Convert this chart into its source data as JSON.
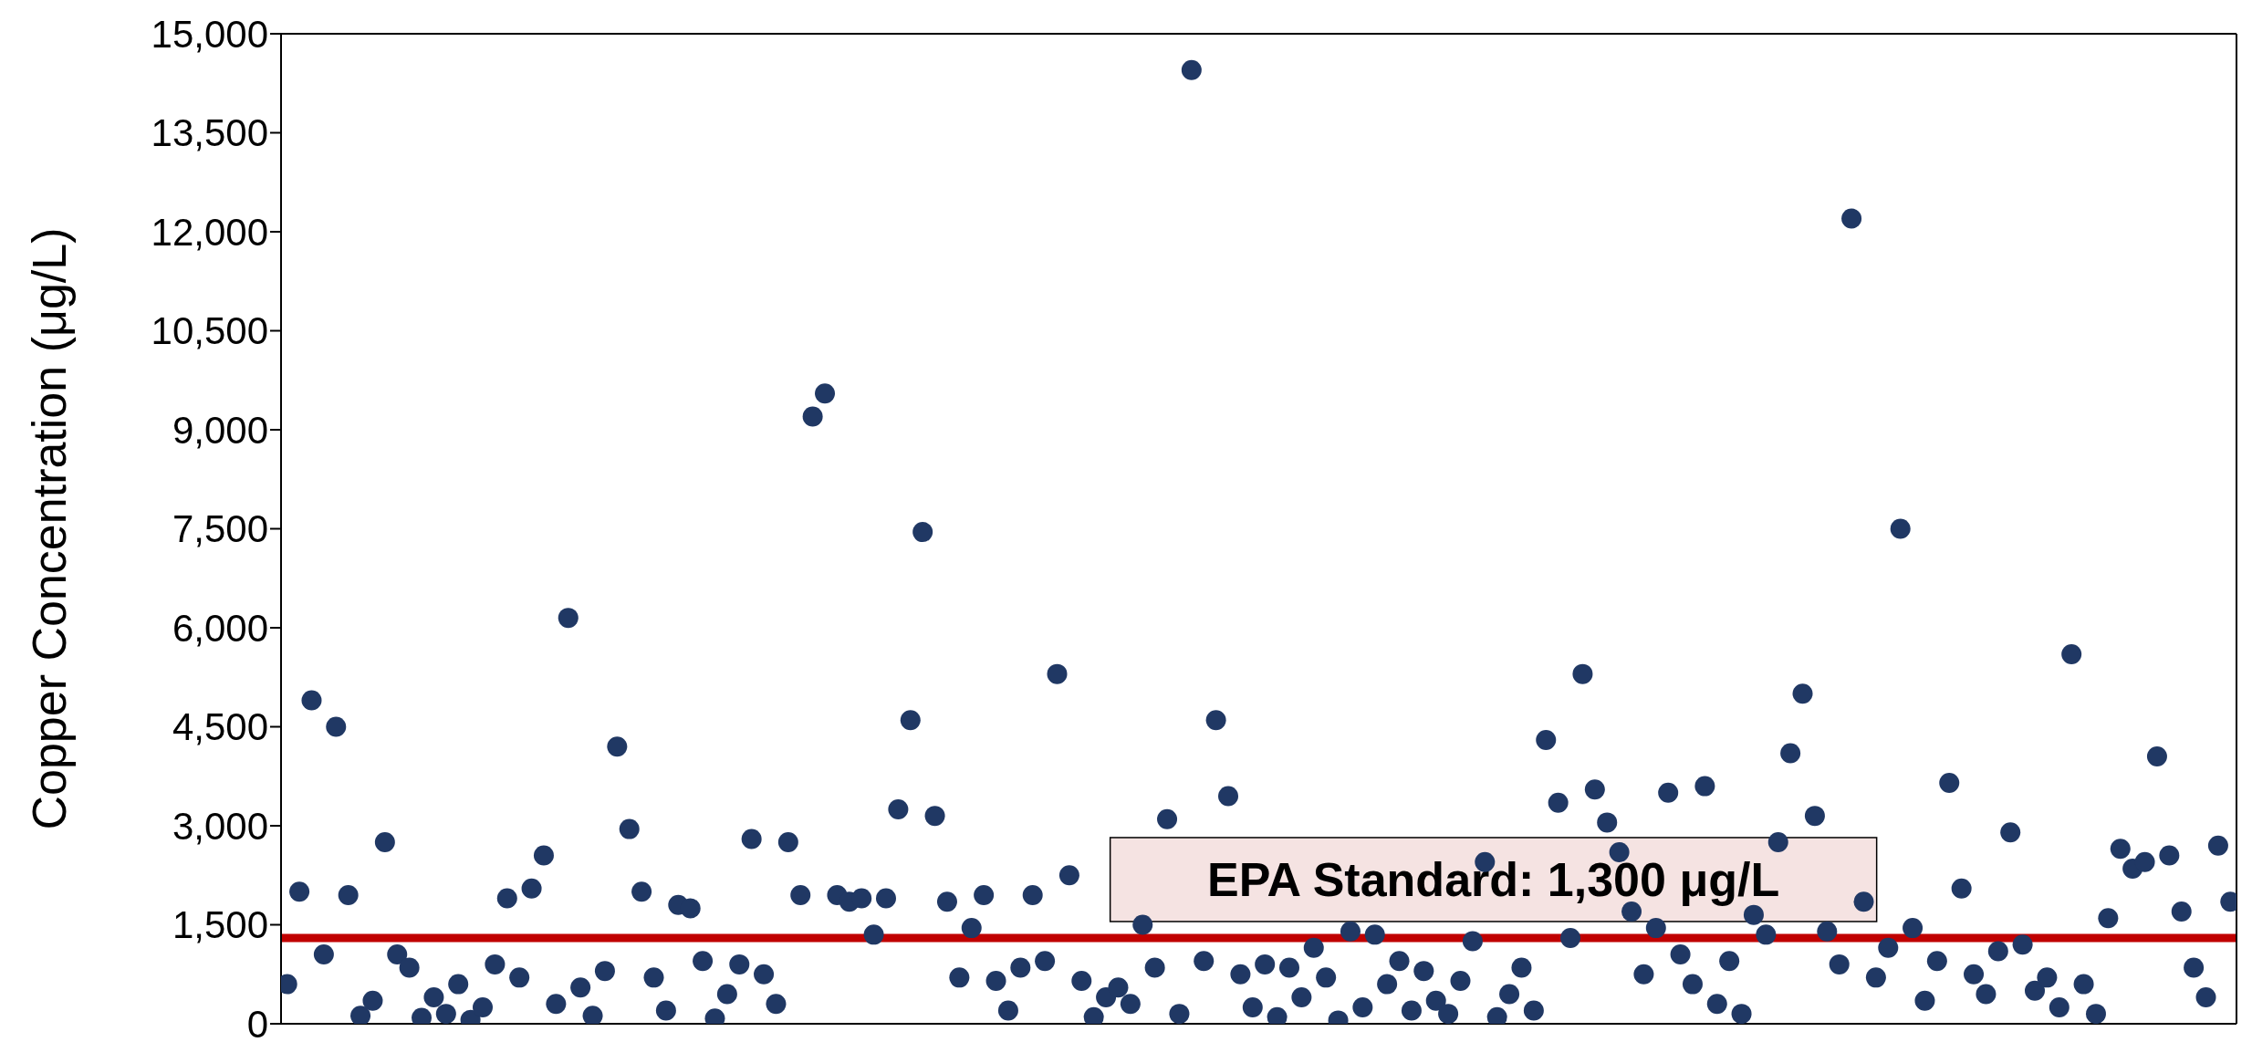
{
  "chart_data": {
    "type": "scatter",
    "ylabel": "Copper Concentration (μg/L)",
    "categories": [
      null,
      null,
      null,
      null,
      null,
      null,
      null,
      null,
      null,
      null,
      null,
      null,
      null,
      null,
      null,
      null,
      null,
      null,
      null,
      null,
      null,
      null,
      null,
      null,
      null,
      null,
      null,
      null,
      null,
      null,
      null,
      null,
      null,
      null,
      null,
      null,
      null,
      null,
      null,
      null,
      null,
      null,
      null,
      null,
      null,
      null,
      null,
      null,
      null,
      null,
      null,
      null,
      null,
      null,
      null,
      null,
      null,
      null,
      null,
      null,
      null,
      null,
      null,
      null,
      null,
      null,
      null,
      null,
      null,
      null,
      null,
      null,
      null,
      null,
      null,
      null,
      null,
      null,
      null,
      null,
      null,
      null,
      null,
      null,
      null,
      null,
      null,
      null,
      null,
      null,
      null,
      null,
      null,
      null,
      null,
      null,
      null,
      null,
      null,
      null,
      null,
      null,
      null,
      null,
      null,
      null,
      null,
      null,
      null,
      null,
      null,
      null,
      null,
      null,
      null,
      null,
      null,
      null,
      null,
      null,
      null,
      null,
      null,
      null,
      null,
      null,
      null,
      null,
      null,
      null,
      null,
      null,
      null,
      null,
      null,
      null,
      null,
      null,
      null,
      null,
      null,
      null,
      null,
      null,
      null,
      null,
      null,
      null,
      null,
      null,
      null,
      null,
      null,
      null,
      null,
      null,
      null,
      null,
      null,
      null
    ],
    "series": [
      {
        "color": "#203864",
        "values": [
          600,
          2000,
          4900,
          1050,
          4500,
          1950,
          120,
          350,
          2750,
          1050,
          850,
          90,
          400,
          150,
          600,
          60,
          250,
          900,
          1900,
          700,
          2050,
          2550,
          300,
          6150,
          550,
          120,
          800,
          4200,
          2950,
          2000,
          700,
          200,
          1800,
          1750,
          950,
          80,
          450,
          900,
          2800,
          750,
          300,
          2750,
          1950,
          9200,
          9550,
          1950,
          1850,
          1900,
          1350,
          1900,
          3250,
          4600,
          7450,
          3150,
          1850,
          700,
          1450,
          1950,
          650,
          200,
          850,
          1950,
          950,
          5300,
          2250,
          650,
          100,
          400,
          550,
          300,
          1500,
          850,
          3100,
          150,
          14450,
          950,
          4600,
          3450,
          750,
          250,
          900,
          100,
          850,
          400,
          1150,
          700,
          50,
          1400,
          250,
          1350,
          600,
          950,
          200,
          800,
          350,
          150,
          650,
          1250,
          2450,
          100,
          450,
          850,
          200,
          4300,
          3350,
          1300,
          5300,
          3550,
          3050,
          2600,
          1700,
          750,
          1450,
          3500,
          1050,
          600,
          3600,
          300,
          950,
          150,
          1650,
          1350,
          2750,
          4100,
          5000,
          3150,
          1400,
          900,
          12200,
          1850,
          700,
          1150,
          7500,
          1450,
          350,
          950,
          3650,
          2050,
          750,
          450,
          1100,
          2900,
          1200,
          500,
          700,
          250,
          5600,
          600,
          150,
          1600,
          2650,
          2350,
          2450,
          4050,
          2550,
          1700,
          850,
          400,
          2700,
          1850
        ]
      }
    ],
    "ylim": [
      0,
      15000
    ],
    "yticks": [
      {
        "value": 0,
        "label": "0"
      },
      {
        "value": 1500,
        "label": "1,500"
      },
      {
        "value": 3000,
        "label": "3,000"
      },
      {
        "value": 4500,
        "label": "4,500"
      },
      {
        "value": 6000,
        "label": "6,000"
      },
      {
        "value": 7500,
        "label": "7,500"
      },
      {
        "value": 9000,
        "label": "9,000"
      },
      {
        "value": 10500,
        "label": "10,500"
      },
      {
        "value": 12000,
        "label": "12,000"
      },
      {
        "value": 13500,
        "label": "13,500"
      },
      {
        "value": 15000,
        "label": "15,000"
      }
    ],
    "tick_labels": "y",
    "marker": "circle",
    "legend": false,
    "grid": false,
    "ref_lines": [
      {
        "axis": "y",
        "value": 1300,
        "label": "EPA Standard: 1,300 μg/L",
        "color": "#c00000"
      }
    ]
  }
}
